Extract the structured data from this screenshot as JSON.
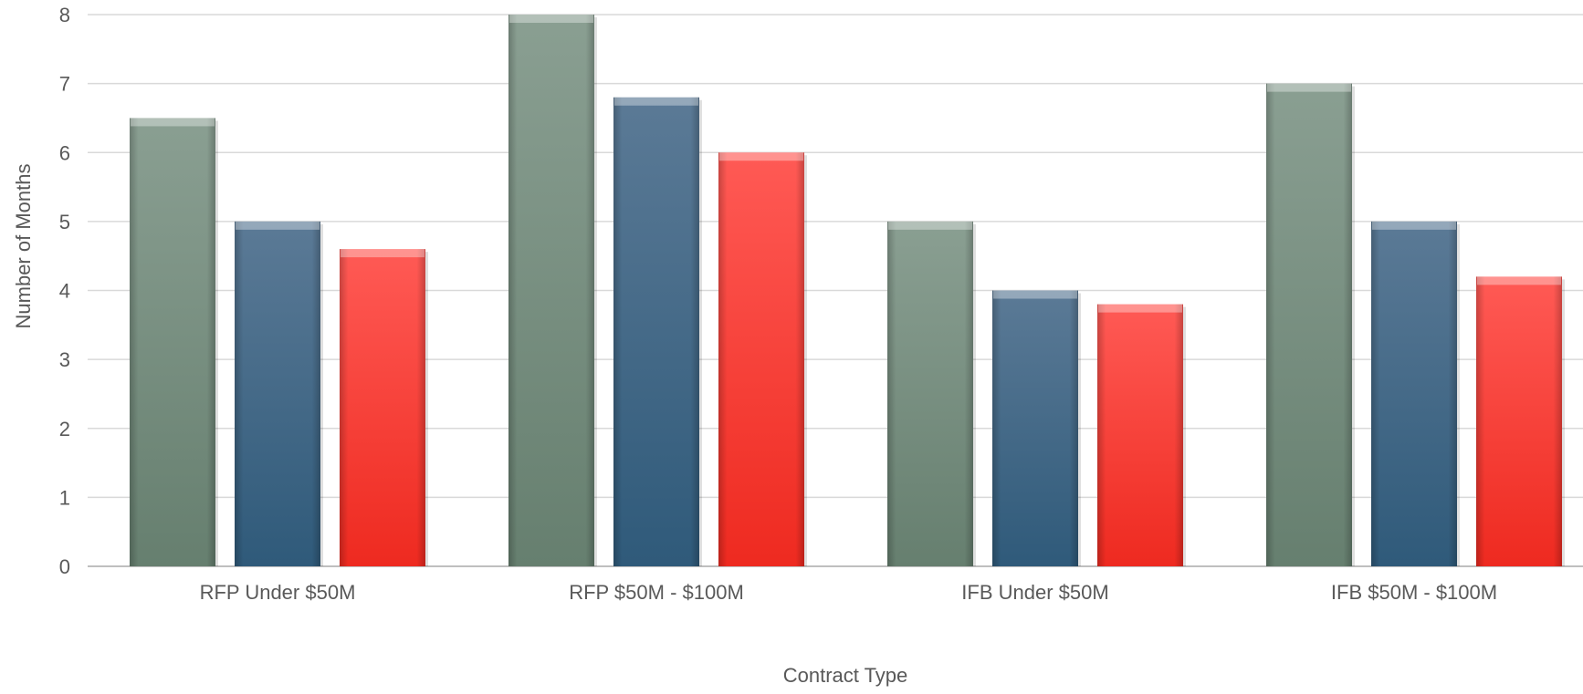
{
  "chart_data": {
    "type": "bar",
    "xlabel": "Contract Type",
    "ylabel": "Number of Months",
    "ylim": [
      0,
      8
    ],
    "yticks": [
      0,
      1,
      2,
      3,
      4,
      5,
      6,
      7,
      8
    ],
    "grid": true,
    "categories": [
      "RFP Under $50M",
      "RFP $50M - $100M",
      "IFB Under $50M",
      "IFB $50M - $100M"
    ],
    "series": [
      {
        "values": [
          6.5,
          8,
          5,
          7
        ],
        "color": "#7a9484"
      },
      {
        "values": [
          5,
          6.8,
          4,
          5
        ],
        "color": "#4a6f8f"
      },
      {
        "values": [
          4.6,
          6,
          3.8,
          4.2
        ],
        "color": "#ff3b30"
      }
    ]
  }
}
